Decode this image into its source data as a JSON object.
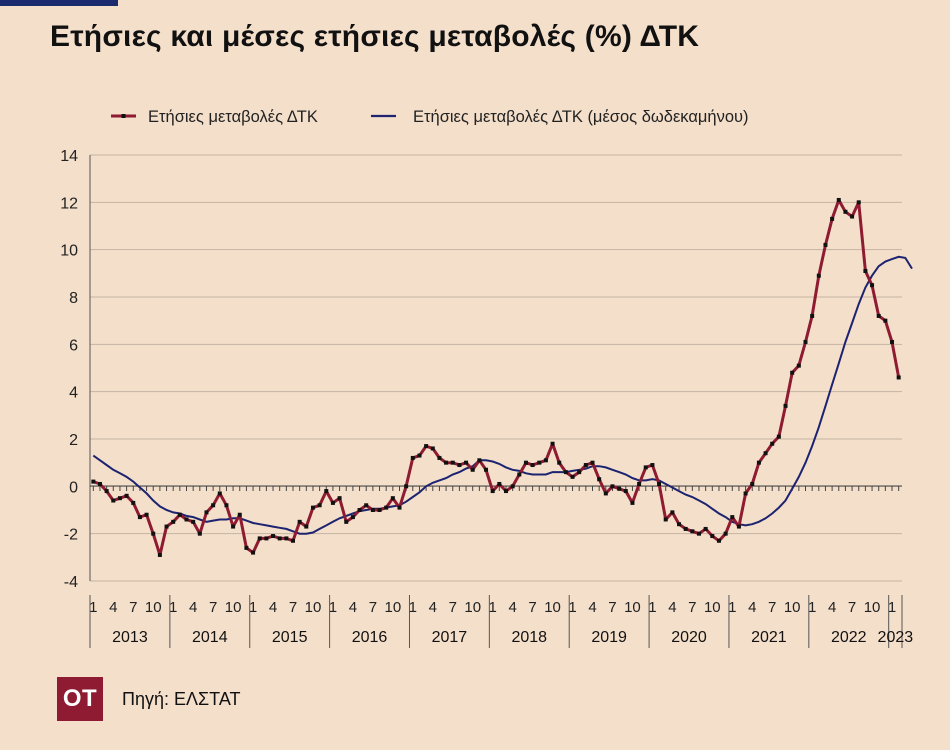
{
  "title": "Ετήσιες και μέσες ετήσιες μεταβολές (%) ΔΤΚ",
  "source": "Πηγή: ΕΛΣΤΑΤ",
  "logo": "OT",
  "colors": {
    "background": "#f4dfca",
    "annual": "#8e1b31",
    "average": "#1c2370",
    "logo_bg": "#8e1b31"
  },
  "chart_data": {
    "type": "line",
    "title": "",
    "xlabel": "",
    "ylabel": "",
    "ylim": [
      -4,
      14
    ],
    "yticks": [
      -4,
      -2,
      0,
      2,
      4,
      6,
      8,
      10,
      12,
      14
    ],
    "grid": true,
    "legend": "top",
    "month_ticks": [
      "1",
      "4",
      "7",
      "10"
    ],
    "years": [
      "2013",
      "2014",
      "2015",
      "2016",
      "2017",
      "2018",
      "2019",
      "2020",
      "2021",
      "2022",
      "2023"
    ],
    "start": "2013-01",
    "series": [
      {
        "name": "Ετήσιες μεταβολές ΔΤΚ",
        "markers": true,
        "values": [
          0.2,
          0.1,
          -0.2,
          -0.6,
          -0.5,
          -0.4,
          -0.7,
          -1.3,
          -1.2,
          -2.0,
          -2.9,
          -1.7,
          -1.5,
          -1.2,
          -1.4,
          -1.5,
          -2.0,
          -1.1,
          -0.8,
          -0.3,
          -0.8,
          -1.7,
          -1.2,
          -2.6,
          -2.8,
          -2.2,
          -2.2,
          -2.1,
          -2.2,
          -2.2,
          -2.3,
          -1.5,
          -1.7,
          -0.9,
          -0.8,
          -0.2,
          -0.7,
          -0.5,
          -1.5,
          -1.3,
          -1.0,
          -0.8,
          -1.0,
          -1.0,
          -0.9,
          -0.5,
          -0.9,
          0.0,
          1.2,
          1.3,
          1.7,
          1.6,
          1.2,
          1.0,
          1.0,
          0.9,
          1.0,
          0.7,
          1.1,
          0.7,
          -0.2,
          0.1,
          -0.2,
          0.0,
          0.5,
          1.0,
          0.9,
          1.0,
          1.1,
          1.8,
          1.0,
          0.6,
          0.4,
          0.6,
          0.9,
          1.0,
          0.3,
          -0.3,
          0.0,
          -0.1,
          -0.2,
          -0.7,
          0.1,
          0.8,
          0.9,
          0.1,
          -1.4,
          -1.1,
          -1.6,
          -1.8,
          -1.9,
          -2.0,
          -1.8,
          -2.1,
          -2.3,
          -2.0,
          -1.3,
          -1.7,
          -0.3,
          0.1,
          1.0,
          1.4,
          1.8,
          2.1,
          3.4,
          4.8,
          5.1,
          6.1,
          7.2,
          8.9,
          10.2,
          11.3,
          12.1,
          11.6,
          11.4,
          12.0,
          9.1,
          8.5,
          7.2,
          7.0,
          6.1,
          4.6
        ]
      },
      {
        "name": "Ετήσιες μεταβολές ΔΤΚ (μέσος δωδεκαμήνου)",
        "markers": false,
        "values": [
          1.3,
          1.1,
          0.9,
          0.7,
          0.55,
          0.4,
          0.2,
          -0.05,
          -0.3,
          -0.6,
          -0.85,
          -1.0,
          -1.1,
          -1.15,
          -1.25,
          -1.3,
          -1.4,
          -1.5,
          -1.45,
          -1.4,
          -1.4,
          -1.35,
          -1.35,
          -1.45,
          -1.55,
          -1.6,
          -1.65,
          -1.7,
          -1.75,
          -1.8,
          -1.9,
          -2.0,
          -2.0,
          -1.95,
          -1.8,
          -1.65,
          -1.5,
          -1.35,
          -1.25,
          -1.15,
          -1.05,
          -1.0,
          -0.95,
          -0.95,
          -0.9,
          -0.85,
          -0.8,
          -0.65,
          -0.45,
          -0.25,
          0.0,
          0.15,
          0.25,
          0.35,
          0.5,
          0.6,
          0.75,
          0.85,
          1.1,
          1.1,
          1.05,
          0.95,
          0.8,
          0.7,
          0.65,
          0.55,
          0.5,
          0.5,
          0.5,
          0.6,
          0.6,
          0.6,
          0.65,
          0.7,
          0.75,
          0.85,
          0.85,
          0.8,
          0.7,
          0.6,
          0.5,
          0.35,
          0.25,
          0.25,
          0.3,
          0.25,
          0.1,
          -0.05,
          -0.2,
          -0.35,
          -0.45,
          -0.6,
          -0.75,
          -0.95,
          -1.15,
          -1.3,
          -1.5,
          -1.6,
          -1.65,
          -1.6,
          -1.5,
          -1.35,
          -1.15,
          -0.9,
          -0.6,
          -0.1,
          0.4,
          1.0,
          1.7,
          2.5,
          3.4,
          4.3,
          5.2,
          6.1,
          6.9,
          7.7,
          8.4,
          8.9,
          9.3,
          9.5,
          9.6,
          9.7,
          9.65,
          9.2
        ]
      }
    ]
  }
}
